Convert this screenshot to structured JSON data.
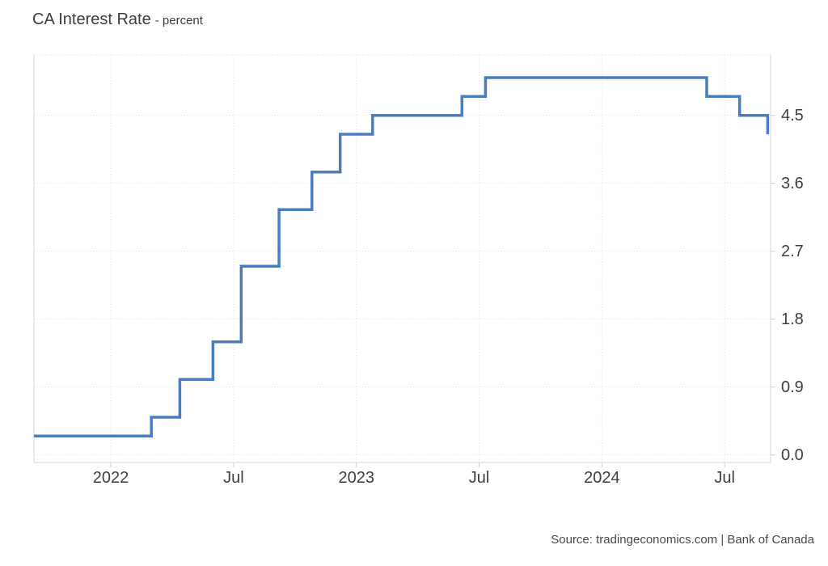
{
  "header": {
    "title": "CA Interest Rate",
    "subtitle": "- percent"
  },
  "footer": {
    "source": "Source: tradingeconomics.com | Bank of Canada"
  },
  "chart_data": {
    "type": "line",
    "subtype": "step",
    "title": "CA Interest Rate",
    "ylabel": "percent",
    "xlabel": "",
    "grid": "dotted",
    "legend": "none",
    "xlim": [
      2021.687,
      2024.687
    ],
    "ylim": [
      -0.1,
      5.3
    ],
    "colors": {
      "line": "#4a7dbe",
      "grid": "#dedede",
      "axis": "#d4d4d4",
      "tick": "#cfcfcf",
      "text": "#3f3f3f"
    },
    "x_ticks": [
      {
        "t": 2022.0,
        "label": "2022"
      },
      {
        "t": 2022.5,
        "label": "Jul"
      },
      {
        "t": 2023.0,
        "label": "2023"
      },
      {
        "t": 2023.5,
        "label": "Jul"
      },
      {
        "t": 2024.0,
        "label": "2024"
      },
      {
        "t": 2024.5,
        "label": "Jul"
      }
    ],
    "y_ticks": [
      {
        "v": 0.0,
        "label": "0.0"
      },
      {
        "v": 0.9,
        "label": "0.9"
      },
      {
        "v": 1.8,
        "label": "1.8"
      },
      {
        "v": 2.7,
        "label": "2.7"
      },
      {
        "v": 3.6,
        "label": "3.6"
      },
      {
        "v": 4.5,
        "label": "4.5"
      }
    ],
    "series": [
      {
        "name": "CA Interest Rate",
        "unit": "percent",
        "points": [
          {
            "date": "2021-09",
            "t": 2021.687,
            "value": 0.25
          },
          {
            "date": "2022-03",
            "t": 2022.165,
            "value": 0.5
          },
          {
            "date": "2022-04",
            "t": 2022.281,
            "value": 1.0
          },
          {
            "date": "2022-06",
            "t": 2022.416,
            "value": 1.5
          },
          {
            "date": "2022-07",
            "t": 2022.531,
            "value": 2.5
          },
          {
            "date": "2022-09",
            "t": 2022.685,
            "value": 3.25
          },
          {
            "date": "2022-10",
            "t": 2022.819,
            "value": 3.75
          },
          {
            "date": "2022-12",
            "t": 2022.934,
            "value": 4.25
          },
          {
            "date": "2023-01",
            "t": 2023.066,
            "value": 4.5
          },
          {
            "date": "2023-06",
            "t": 2023.43,
            "value": 4.75
          },
          {
            "date": "2023-07",
            "t": 2023.526,
            "value": 5.0
          },
          {
            "date": "2024-06",
            "t": 2024.427,
            "value": 4.75
          },
          {
            "date": "2024-07",
            "t": 2024.561,
            "value": 4.5
          },
          {
            "date": "2024-09",
            "t": 2024.675,
            "value": 4.25
          }
        ]
      }
    ]
  }
}
